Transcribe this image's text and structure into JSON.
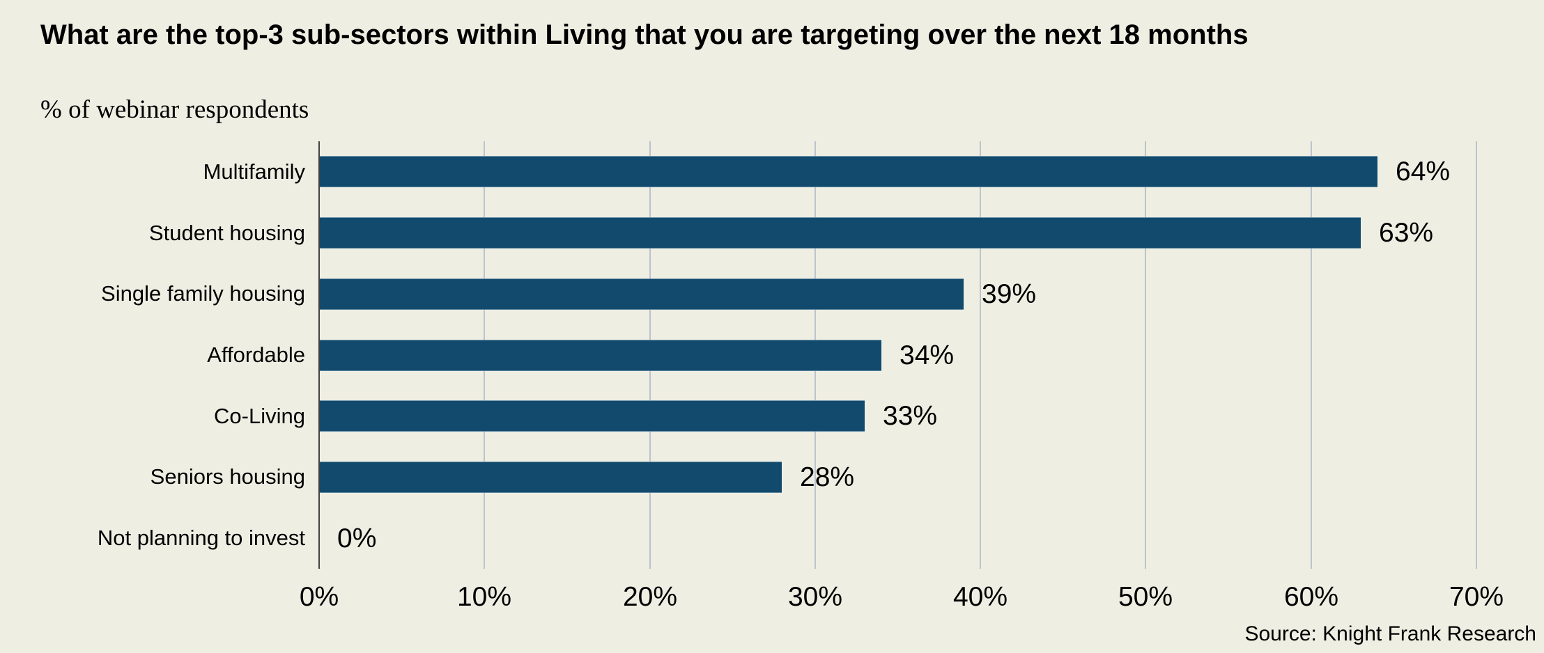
{
  "chart_data": {
    "type": "bar",
    "orientation": "horizontal",
    "title": "What are the top-3 sub-sectors within Living that you are targeting over the next 18 months",
    "subtitle": "% of webinar respondents",
    "categories": [
      "Multifamily",
      "Student housing",
      "Single family housing",
      "Affordable",
      "Co-Living",
      "Seniors housing",
      "Not planning to invest"
    ],
    "values": [
      64,
      63,
      39,
      34,
      33,
      28,
      0
    ],
    "value_labels": [
      "64%",
      "63%",
      "39%",
      "34%",
      "33%",
      "28%",
      "0%"
    ],
    "xlim": [
      0,
      70
    ],
    "x_tick_labels": [
      "0%",
      "10%",
      "20%",
      "30%",
      "40%",
      "50%",
      "60%",
      "70%"
    ],
    "grid": "vertical-major",
    "legend": "none",
    "source": "Source: Knight Frank Research",
    "colors": {
      "bar": "#114A6D",
      "background": "#EFEEE3",
      "gridline": "#BAC4CB",
      "axis": "#434340",
      "text": "#000000"
    }
  }
}
